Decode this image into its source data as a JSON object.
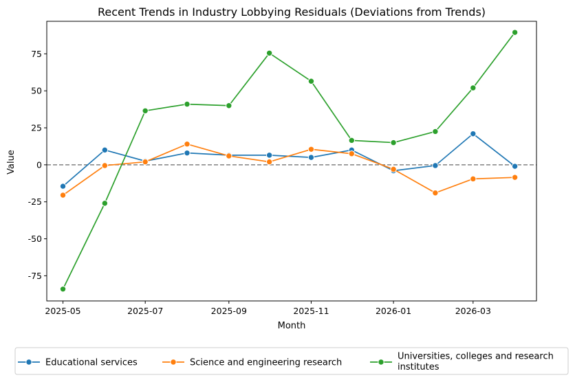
{
  "chart_data": {
    "type": "line",
    "title": "Recent Trends in Industry Lobbying Residuals (Deviations from Trends)",
    "xlabel": "Month",
    "ylabel": "Value",
    "x": [
      "2025-05-01",
      "2025-06-01",
      "2025-07-01",
      "2025-08-01",
      "2025-09-01",
      "2025-10-01",
      "2025-11-01",
      "2025-12-01",
      "2026-01-01",
      "2026-02-01",
      "2026-03-01",
      "2026-04-01"
    ],
    "xticks": [
      "2025-05",
      "2025-07",
      "2025-09",
      "2025-11",
      "2026-01",
      "2026-03"
    ],
    "yticks": [
      -75,
      -50,
      -25,
      0,
      25,
      50,
      75
    ],
    "ylim": [
      -92,
      97
    ],
    "xlim": [
      "2025-04-19",
      "2026-04-17"
    ],
    "reference_line": {
      "y": 0,
      "style": "dashed",
      "color": "#808080"
    },
    "grid": false,
    "legend_position": "bottom-outside",
    "series": [
      {
        "name": "Educational services",
        "color": "#1f77b4",
        "values": [
          -14.5,
          10,
          2.5,
          8,
          6.5,
          6.5,
          5,
          10,
          -4,
          -0.5,
          21,
          -1
        ]
      },
      {
        "name": "Science and engineering research",
        "color": "#ff7f0e",
        "values": [
          -20.5,
          -0.5,
          2,
          14,
          6,
          2,
          10.5,
          7.5,
          -3,
          -19,
          -9.5,
          -8.5
        ]
      },
      {
        "name": "Universities, colleges and research institutes",
        "color": "#2ca02c",
        "legend_lines": [
          "Universities, colleges and research",
          "institutes"
        ],
        "values": [
          -84,
          -26,
          36.5,
          41,
          40,
          75.5,
          56.5,
          16.5,
          15,
          22.5,
          52,
          89.5
        ]
      }
    ]
  }
}
